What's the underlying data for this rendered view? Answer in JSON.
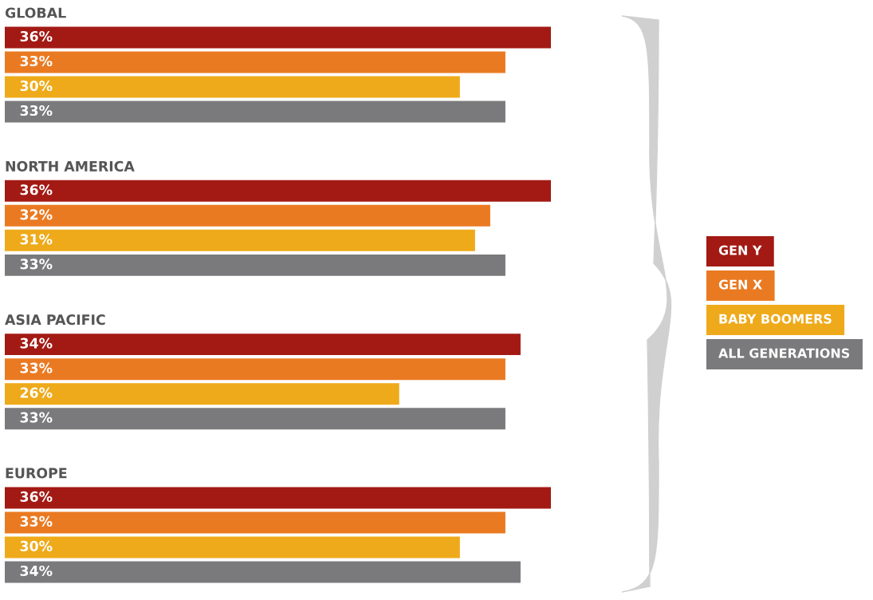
{
  "chart_data": {
    "type": "bar",
    "orientation": "horizontal",
    "legend": "right",
    "categories": [
      "GLOBAL",
      "NORTH AMERICA",
      "ASIA PACIFIC",
      "EUROPE"
    ],
    "series": [
      {
        "name": "GEN Y",
        "color": "#a31a14",
        "values": [
          36,
          36,
          34,
          36
        ],
        "value_labels": [
          "36%",
          "36%",
          "34%",
          "36%"
        ]
      },
      {
        "name": "GEN X",
        "color": "#ea7a22",
        "values": [
          33,
          32,
          33,
          33
        ],
        "value_labels": [
          "33%",
          "32%",
          "33%",
          "33%"
        ]
      },
      {
        "name": "BABY BOOMERS",
        "color": "#eeaa1a",
        "values": [
          30,
          31,
          26,
          30
        ],
        "value_labels": [
          "30%",
          "31%",
          "26%",
          "30%"
        ]
      },
      {
        "name": "ALL GENERATIONS",
        "color": "#7a7a7c",
        "values": [
          33,
          33,
          33,
          34
        ],
        "value_labels": [
          "33%",
          "33%",
          "33%",
          "34%"
        ]
      }
    ]
  }
}
